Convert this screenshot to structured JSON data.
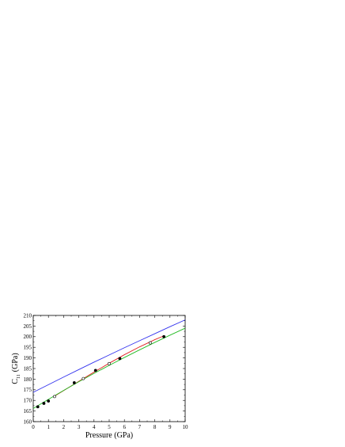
{
  "chart_data": {
    "type": "line",
    "xlabel": "Pressure (GPa)",
    "ylabel": {
      "main": "C",
      "subscript": "11",
      "unit": "(GPa)"
    },
    "xlim": [
      0,
      10
    ],
    "ylim": [
      160,
      210
    ],
    "xticks": [
      "0",
      "1",
      "2",
      "3",
      "4",
      "5",
      "6",
      "7",
      "8",
      "9",
      "10"
    ],
    "yticks": [
      "160",
      "165",
      "170",
      "175",
      "180",
      "185",
      "190",
      "195",
      "200",
      "205",
      "210"
    ],
    "grid": false,
    "legend": null,
    "series": [
      {
        "kind": "line",
        "color": "#3333ee",
        "x": [
          0,
          1,
          2,
          3,
          4,
          5,
          6,
          7,
          8,
          9,
          10
        ],
        "y": [
          173.8,
          177.4,
          181.0,
          184.5,
          188.0,
          191.4,
          194.8,
          198.1,
          201.4,
          204.7,
          207.9
        ]
      },
      {
        "kind": "line",
        "color": "#e02020",
        "x": [
          1.4,
          3,
          4,
          5,
          6,
          7,
          8,
          8.6
        ],
        "y": [
          172.0,
          179.0,
          183.3,
          187.5,
          191.5,
          195.2,
          198.6,
          200.4
        ]
      },
      {
        "kind": "line",
        "color": "#22bb22",
        "x": [
          0,
          1,
          2,
          3,
          4,
          5,
          6,
          7,
          8,
          9,
          10
        ],
        "y": [
          166.2,
          170.5,
          174.7,
          178.8,
          182.7,
          186.5,
          190.2,
          193.8,
          197.3,
          200.7,
          204.0
        ]
      },
      {
        "kind": "markers",
        "marker": "filled-circle",
        "color": "#000000",
        "x": [
          0.3,
          0.7,
          1.0,
          2.7,
          4.1,
          5.7,
          8.6
        ],
        "y": [
          167.0,
          168.6,
          169.7,
          178.3,
          184.1,
          189.7,
          200.0
        ]
      },
      {
        "kind": "markers",
        "marker": "open-circle",
        "color": "#000000",
        "x": [
          1.4,
          3.3,
          5.0,
          7.7
        ],
        "y": [
          171.8,
          180.3,
          187.3,
          197.1
        ]
      }
    ]
  }
}
